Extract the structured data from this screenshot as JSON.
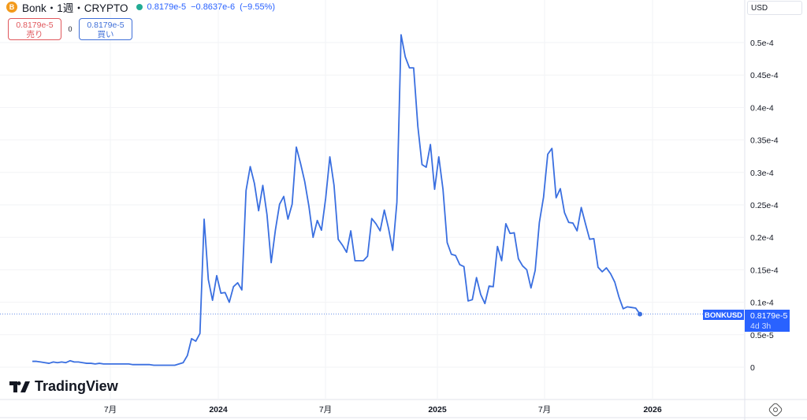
{
  "header": {
    "symbol": "Bonk",
    "interval": "1週",
    "exchange": "CRYPTO",
    "title": "Bonk・1週・CRYPTO",
    "last": "0.8179e-5",
    "change": "−0.8637e-6",
    "change_pct": "(−9.55%)",
    "status_color": "#22ab94",
    "coin_icon": "bonk-coin-icon"
  },
  "trade": {
    "sell_price": "0.8179e-5",
    "sell_label": "売り",
    "spread": "0",
    "buy_price": "0.8179e-5",
    "buy_label": "買い"
  },
  "currency": "USD",
  "branding": "TradingView",
  "chart_data": {
    "type": "line",
    "interval": "1週",
    "symbol_label": "BONKUSD",
    "last_value_label": "0.8179e-5",
    "countdown": "4d 3h",
    "line_color": "#3a6fe0",
    "grid": true,
    "x_ticks": [
      "7月",
      "2024",
      "7月",
      "2025",
      "7月",
      "2026"
    ],
    "y_ticks": [
      "0",
      "0.5e-5",
      "0.1e-4",
      "0.15e-4",
      "0.2e-4",
      "0.25e-4",
      "0.3e-4",
      "0.35e-4",
      "0.4e-4",
      "0.45e-4",
      "0.5e-4"
    ],
    "y_unit": "e-5",
    "ylim": [
      -0.5,
      5.6
    ],
    "values": [
      0.09,
      0.09,
      0.08,
      0.07,
      0.06,
      0.08,
      0.07,
      0.08,
      0.07,
      0.1,
      0.08,
      0.08,
      0.07,
      0.06,
      0.06,
      0.05,
      0.06,
      0.05,
      0.05,
      0.05,
      0.05,
      0.05,
      0.05,
      0.05,
      0.04,
      0.04,
      0.04,
      0.04,
      0.04,
      0.03,
      0.03,
      0.03,
      0.03,
      0.03,
      0.03,
      0.05,
      0.07,
      0.18,
      0.44,
      0.4,
      0.52,
      2.28,
      1.35,
      1.03,
      1.41,
      1.14,
      1.15,
      1.0,
      1.24,
      1.3,
      1.19,
      2.72,
      3.09,
      2.83,
      2.41,
      2.8,
      2.35,
      1.61,
      2.11,
      2.51,
      2.63,
      2.28,
      2.51,
      3.39,
      3.14,
      2.86,
      2.48,
      2.0,
      2.26,
      2.11,
      2.6,
      3.24,
      2.8,
      1.97,
      1.88,
      1.77,
      2.1,
      1.64,
      1.64,
      1.64,
      1.71,
      2.29,
      2.21,
      2.1,
      2.42,
      2.14,
      1.8,
      2.54,
      5.12,
      4.78,
      4.61,
      4.61,
      3.71,
      3.12,
      3.08,
      3.43,
      2.74,
      3.24,
      2.74,
      1.92,
      1.74,
      1.72,
      1.58,
      1.55,
      1.02,
      1.04,
      1.38,
      1.12,
      0.98,
      1.25,
      1.24,
      1.86,
      1.64,
      2.21,
      2.06,
      2.07,
      1.67,
      1.56,
      1.5,
      1.22,
      1.49,
      2.23,
      2.62,
      3.28,
      3.37,
      2.61,
      2.75,
      2.38,
      2.23,
      2.22,
      2.1,
      2.46,
      2.21,
      1.97,
      1.98,
      1.54,
      1.47,
      1.53,
      1.44,
      1.31,
      1.08,
      0.9,
      0.93,
      0.92,
      0.91,
      0.818
    ]
  }
}
